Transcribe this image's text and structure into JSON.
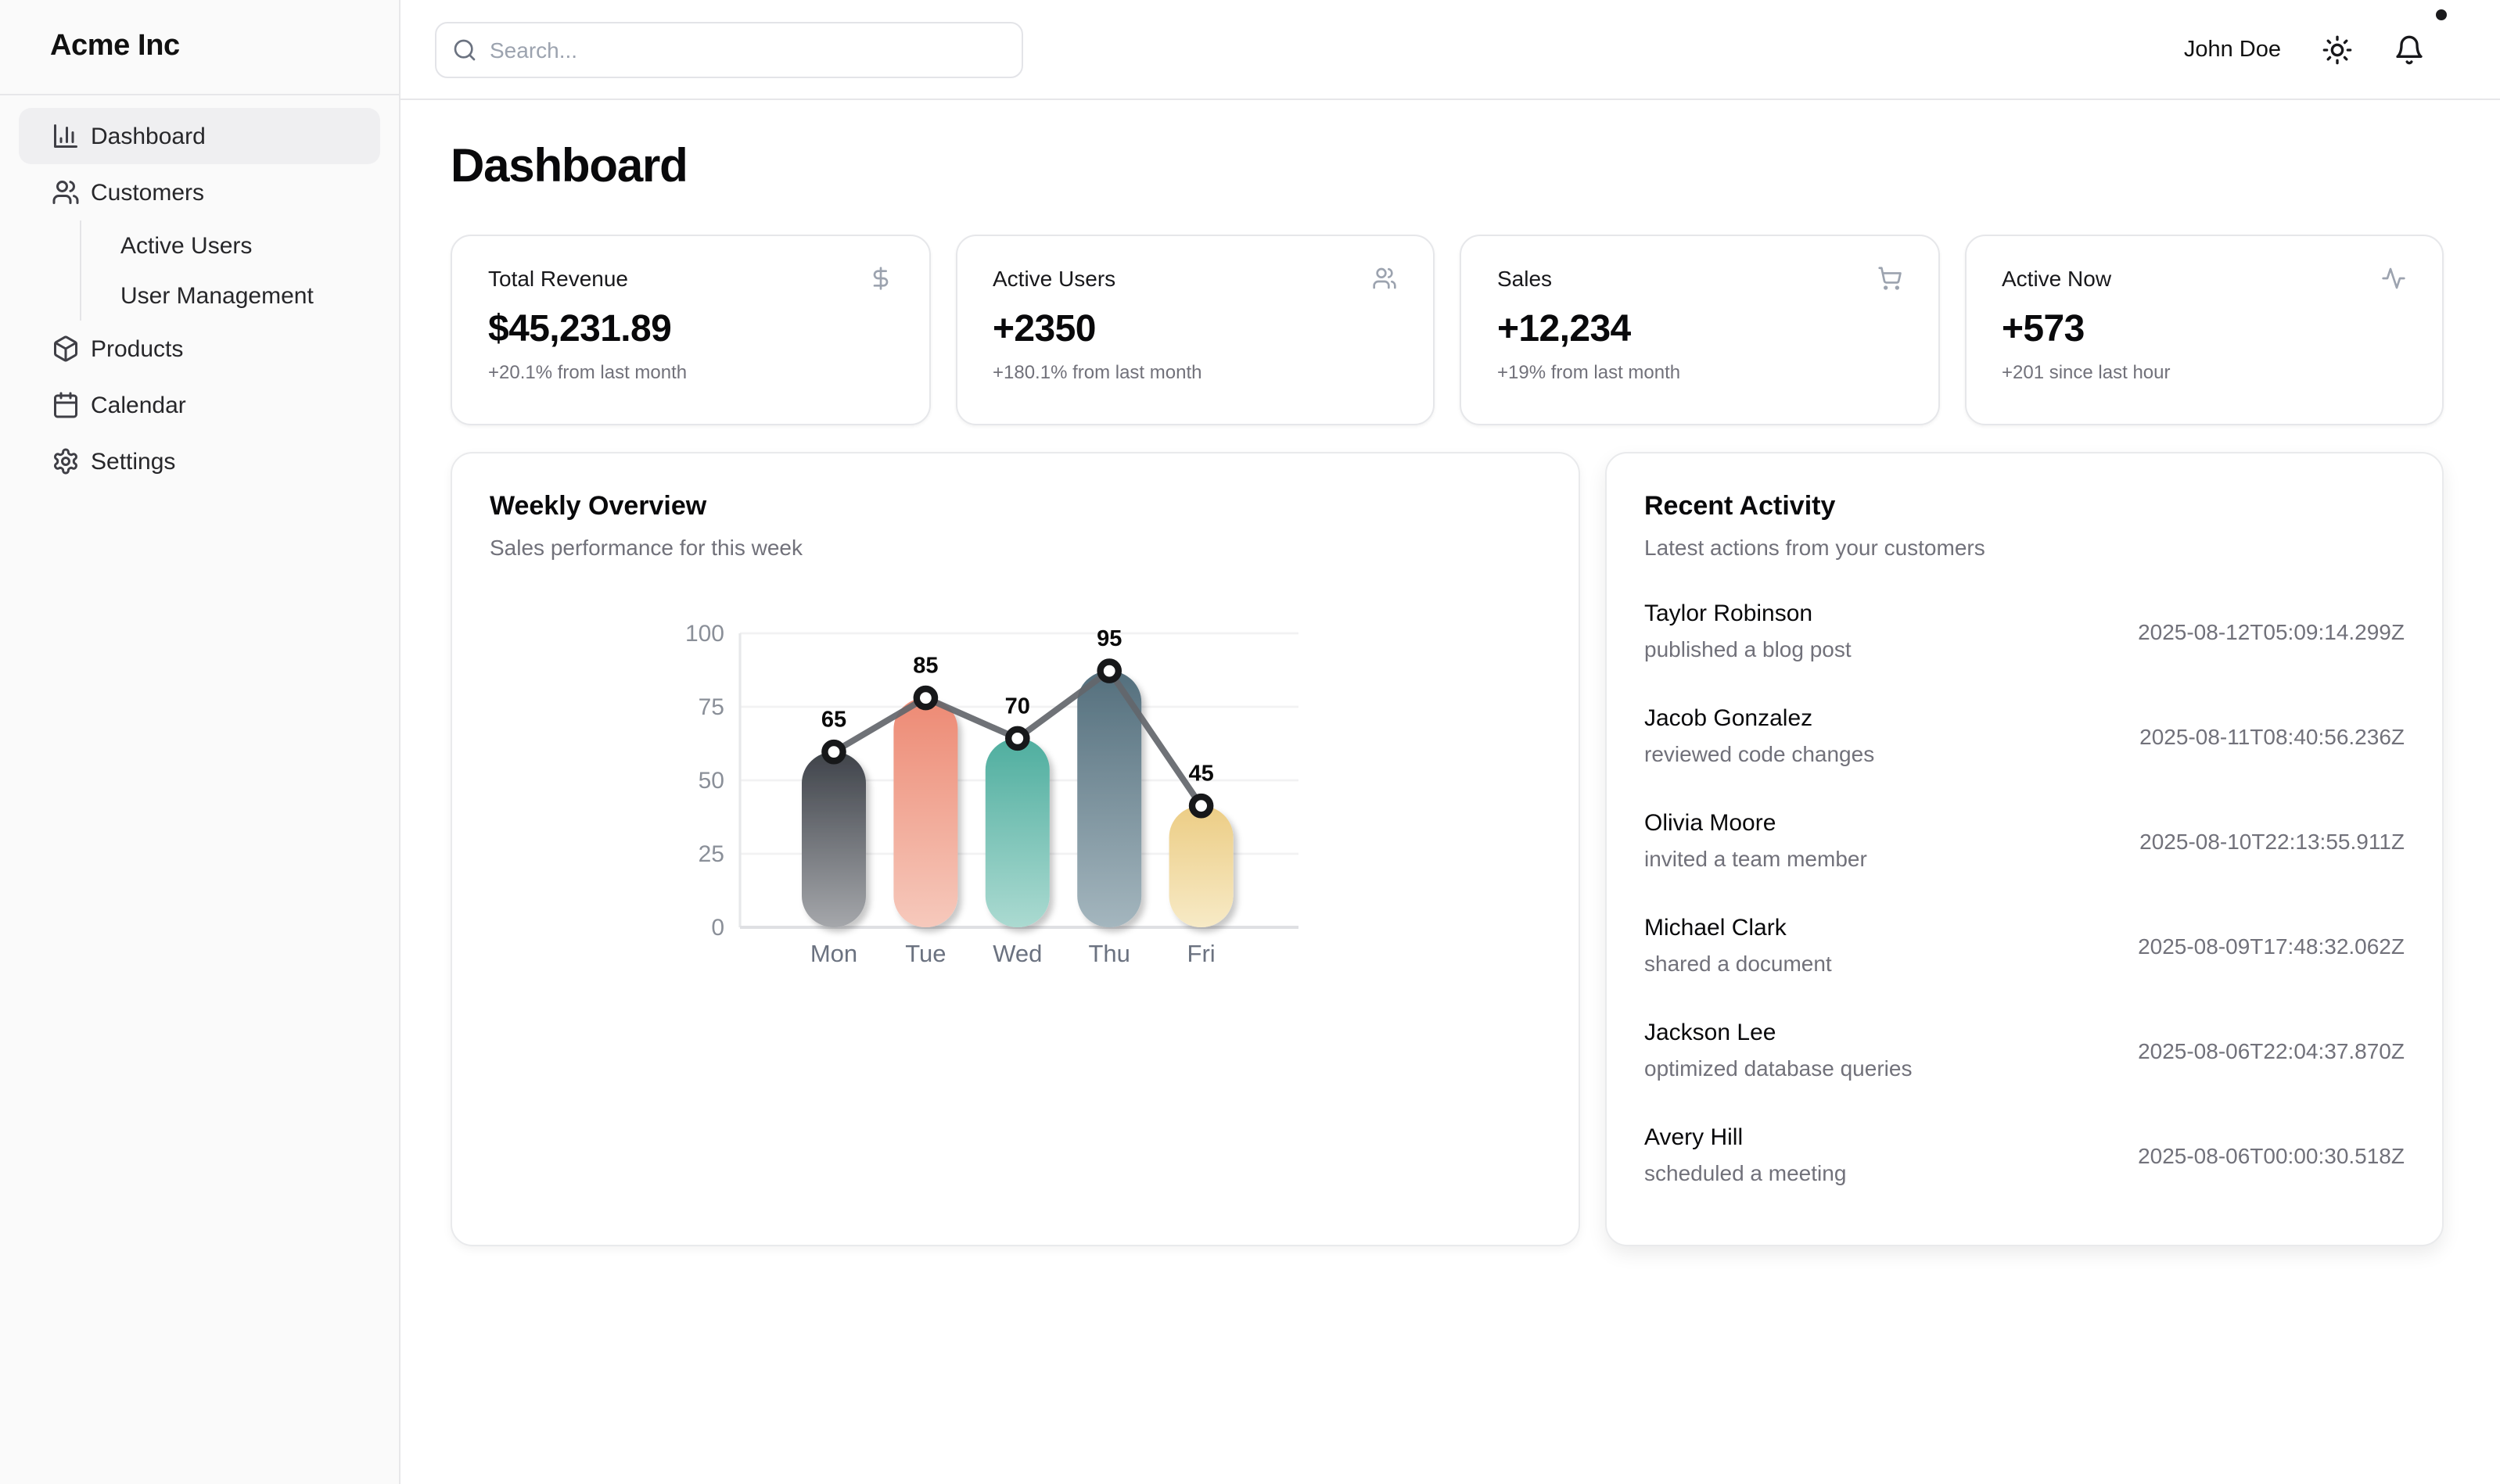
{
  "brand": {
    "name": "Acme Inc"
  },
  "sidebar": {
    "items": [
      {
        "label": "Dashboard",
        "icon": "bar-chart-icon",
        "active": true
      },
      {
        "label": "Customers",
        "icon": "users-icon",
        "active": false
      },
      {
        "label": "Active Users",
        "sub": true
      },
      {
        "label": "User Management",
        "sub": true
      },
      {
        "label": "Products",
        "icon": "package-icon",
        "active": false
      },
      {
        "label": "Calendar",
        "icon": "calendar-icon",
        "active": false
      },
      {
        "label": "Settings",
        "icon": "gear-icon",
        "active": false
      }
    ]
  },
  "header": {
    "search_placeholder": "Search...",
    "user_name": "John Doe",
    "theme_icon": "sun-icon",
    "notifications_icon": "bell-icon",
    "notification_dot_color": "#1b1b1d"
  },
  "page_title": "Dashboard",
  "stats": [
    {
      "title": "Total Revenue",
      "icon": "dollar-icon",
      "value": "$45,231.89",
      "note": "+20.1% from last month"
    },
    {
      "title": "Active Users",
      "icon": "users-icon",
      "value": "+2350",
      "note": "+180.1% from last month"
    },
    {
      "title": "Sales",
      "icon": "cart-icon",
      "value": "+12,234",
      "note": "+19% from last month"
    },
    {
      "title": "Active Now",
      "icon": "activity-icon",
      "value": "+573",
      "note": "+201 since last hour"
    }
  ],
  "weekly": {
    "title": "Weekly Overview",
    "subtitle": "Sales performance for this week"
  },
  "chart_data": {
    "type": "bar",
    "title": "Weekly Overview",
    "categories": [
      "Mon",
      "Tue",
      "Wed",
      "Thu",
      "Fri"
    ],
    "values": [
      65,
      85,
      70,
      95,
      45
    ],
    "series": [
      {
        "name": "sales-bars",
        "type": "bar",
        "values": [
          65,
          85,
          70,
          95,
          45
        ]
      },
      {
        "name": "sales-trend",
        "type": "line",
        "values": [
          65,
          85,
          70,
          95,
          45
        ]
      }
    ],
    "xlabel": "",
    "ylabel": "",
    "ylim": [
      0,
      100
    ],
    "yticks": [
      0,
      25,
      50,
      75,
      100
    ],
    "grid": true,
    "legend": false,
    "bar_gradients": [
      [
        "#3f434a",
        "#a5a7ab"
      ],
      [
        "#ed8a74",
        "#f6c9bc"
      ],
      [
        "#4fae9f",
        "#abdad1"
      ],
      [
        "#546f7d",
        "#a4b6be"
      ],
      [
        "#eccd85",
        "#f7eac6"
      ]
    ],
    "line_color": "#63666b",
    "marker_fill": "#ffffff",
    "marker_stroke": "#17181a",
    "value_label_color": "#0a0a0a",
    "grid_color": "#f2f2f3",
    "axis_line_color": "#e7e8ea",
    "baseline_color": "#dfe0e3",
    "ytick_color": "#8a8f98",
    "xtick_color": "#6b7280"
  },
  "activity": {
    "title": "Recent Activity",
    "subtitle": "Latest actions from your customers",
    "items": [
      {
        "name": "Taylor Robinson",
        "action": "published a blog post",
        "timestamp": "2025-08-12T05:09:14.299Z"
      },
      {
        "name": "Jacob Gonzalez",
        "action": "reviewed code changes",
        "timestamp": "2025-08-11T08:40:56.236Z"
      },
      {
        "name": "Olivia Moore",
        "action": "invited a team member",
        "timestamp": "2025-08-10T22:13:55.911Z"
      },
      {
        "name": "Michael Clark",
        "action": "shared a document",
        "timestamp": "2025-08-09T17:48:32.062Z"
      },
      {
        "name": "Jackson Lee",
        "action": "optimized database queries",
        "timestamp": "2025-08-06T22:04:37.870Z"
      },
      {
        "name": "Avery Hill",
        "action": "scheduled a meeting",
        "timestamp": "2025-08-06T00:00:30.518Z"
      }
    ]
  }
}
